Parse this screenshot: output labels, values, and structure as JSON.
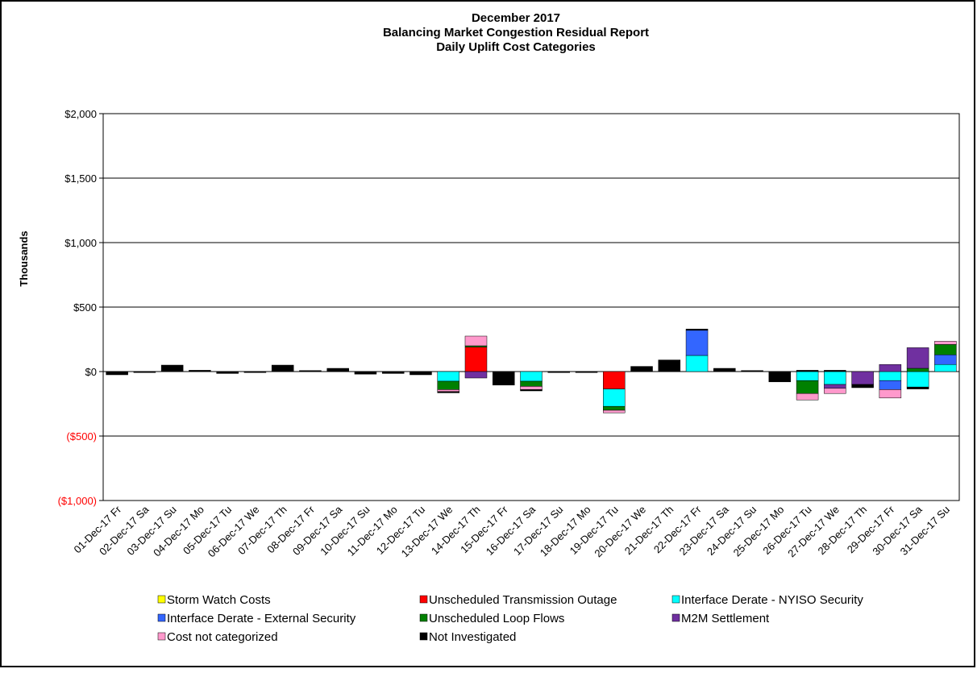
{
  "chart_data": {
    "type": "stacked_bar",
    "title": [
      "December 2017",
      "Balancing Market Congestion Residual Report",
      "Daily Uplift Cost Categories"
    ],
    "y_label": "Thousands",
    "categories": [
      "01-Dec-17 Fr",
      "02-Dec-17 Sa",
      "03-Dec-17 Su",
      "04-Dec-17 Mo",
      "05-Dec-17 Tu",
      "06-Dec-17 We",
      "07-Dec-17 Th",
      "08-Dec-17 Fr",
      "09-Dec-17 Sa",
      "10-Dec-17 Su",
      "11-Dec-17 Mo",
      "12-Dec-17 Tu",
      "13-Dec-17 We",
      "14-Dec-17 Th",
      "15-Dec-17 Fr",
      "16-Dec-17 Sa",
      "17-Dec-17 Su",
      "18-Dec-17 Mo",
      "19-Dec-17 Tu",
      "20-Dec-17 We",
      "21-Dec-17 Th",
      "22-Dec-17 Fr",
      "23-Dec-17 Sa",
      "24-Dec-17 Su",
      "25-Dec-17 Mo",
      "26-Dec-17 Tu",
      "27-Dec-17 We",
      "28-Dec-17 Th",
      "29-Dec-17 Fr",
      "30-Dec-17 Sa",
      "31-Dec-17 Su"
    ],
    "series": [
      {
        "name": "Storm Watch Costs",
        "color": "#ffff00",
        "values": [
          0,
          0,
          0,
          0,
          0,
          0,
          0,
          0,
          0,
          0,
          0,
          0,
          0,
          0,
          0,
          0,
          0,
          0,
          0,
          0,
          0,
          0,
          0,
          0,
          0,
          0,
          0,
          0,
          0,
          0,
          0
        ]
      },
      {
        "name": "Unscheduled Transmission Outage",
        "color": "#ff0000",
        "values": [
          0,
          0,
          0,
          0,
          0,
          0,
          0,
          0,
          0,
          0,
          0,
          0,
          0,
          190,
          0,
          0,
          0,
          0,
          -135,
          0,
          0,
          0,
          0,
          0,
          0,
          0,
          0,
          0,
          0,
          0,
          0
        ]
      },
      {
        "name": "Interface Derate - NYISO Security",
        "color": "#00ffff",
        "values": [
          0,
          0,
          0,
          0,
          0,
          0,
          0,
          0,
          0,
          0,
          0,
          0,
          -75,
          0,
          0,
          -75,
          0,
          0,
          -135,
          0,
          0,
          125,
          0,
          0,
          0,
          -70,
          -100,
          0,
          -70,
          -120,
          55
        ]
      },
      {
        "name": "Interface Derate - External Security",
        "color": "#3366ff",
        "values": [
          0,
          0,
          0,
          0,
          0,
          0,
          0,
          0,
          0,
          0,
          0,
          0,
          0,
          0,
          0,
          0,
          0,
          0,
          0,
          0,
          0,
          195,
          0,
          0,
          0,
          0,
          0,
          0,
          -70,
          0,
          75
        ]
      },
      {
        "name": "Unscheduled Loop Flows",
        "color": "#008000",
        "values": [
          0,
          0,
          0,
          0,
          0,
          0,
          0,
          0,
          0,
          0,
          0,
          0,
          -65,
          10,
          0,
          -40,
          0,
          0,
          -30,
          0,
          0,
          0,
          0,
          0,
          0,
          -100,
          0,
          0,
          0,
          25,
          80
        ]
      },
      {
        "name": "M2M Settlement",
        "color": "#7030a0",
        "values": [
          0,
          0,
          0,
          0,
          0,
          0,
          0,
          0,
          0,
          0,
          0,
          0,
          0,
          -50,
          0,
          0,
          0,
          0,
          0,
          0,
          0,
          0,
          0,
          0,
          0,
          0,
          -30,
          -100,
          55,
          160,
          0
        ]
      },
      {
        "name": "Cost not categorized",
        "color": "#ff99cc",
        "values": [
          0,
          0,
          0,
          0,
          0,
          0,
          0,
          0,
          0,
          0,
          0,
          0,
          -15,
          75,
          0,
          -25,
          0,
          0,
          -20,
          0,
          0,
          0,
          0,
          0,
          0,
          -50,
          -40,
          0,
          -65,
          0,
          25
        ]
      },
      {
        "name": "Not Investigated",
        "color": "#000000",
        "values": [
          -25,
          -8,
          50,
          10,
          -15,
          -8,
          50,
          8,
          25,
          -20,
          -15,
          -25,
          -10,
          0,
          -105,
          -10,
          -8,
          -8,
          0,
          40,
          90,
          10,
          25,
          8,
          -80,
          10,
          10,
          -25,
          0,
          -15,
          0
        ]
      }
    ],
    "ylim": [
      -1000,
      2000
    ],
    "yticks": [
      {
        "value": -1000,
        "label": "($1,000)"
      },
      {
        "value": -500,
        "label": "($500)"
      },
      {
        "value": 0,
        "label": "$0"
      },
      {
        "value": 500,
        "label": "$500"
      },
      {
        "value": 1000,
        "label": "$1,000"
      },
      {
        "value": 1500,
        "label": "$1,500"
      },
      {
        "value": 2000,
        "label": "$2,000"
      }
    ],
    "negative_tick_color": "#ff0000",
    "grid": true
  }
}
